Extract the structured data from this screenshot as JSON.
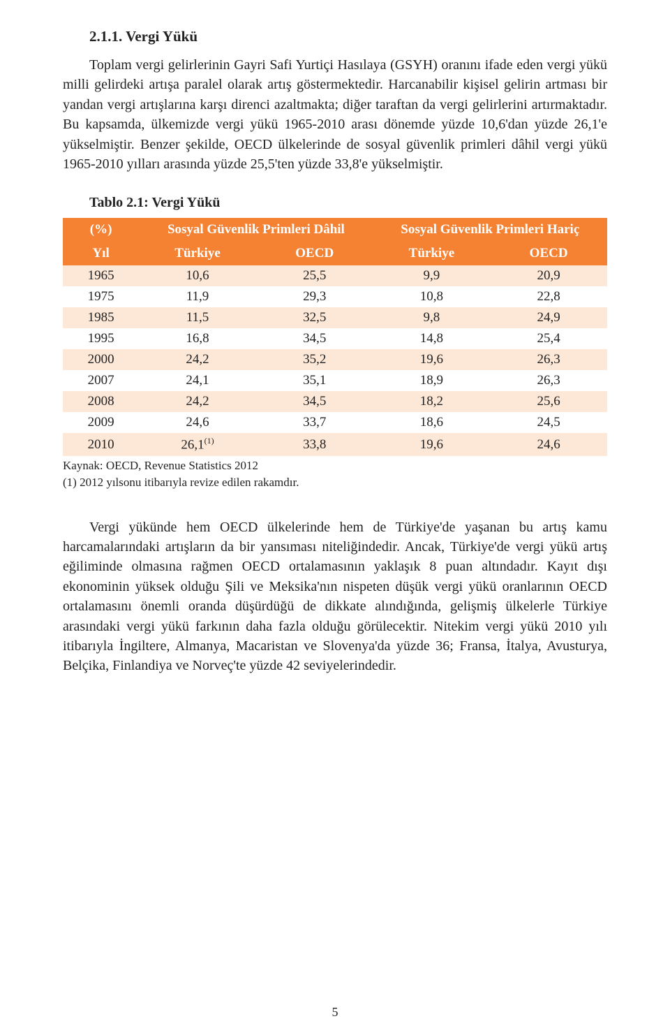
{
  "section_heading": "2.1.1. Vergi Yükü",
  "paragraph1": "Toplam vergi gelirlerinin Gayri Safi Yurtiçi Hasılaya (GSYH) oranını ifade eden vergi yükü milli gelirdeki artışa paralel olarak artış göstermektedir. Harcanabilir kişisel gelirin artması bir yandan vergi artışlarına karşı direnci azaltmakta; diğer taraftan da vergi gelirlerini artırmaktadır. Bu kapsamda, ülkemizde vergi yükü 1965-2010 arası dönemde yüzde 10,6'dan yüzde 26,1'e yükselmiştir. Benzer şekilde, OECD ülkelerinde de sosyal güvenlik primleri dâhil vergi yükü 1965-2010 yılları arasında yüzde 25,5'ten yüzde 33,8'e yükselmiştir.",
  "table_title": "Tablo 2.1: Vergi Yükü",
  "header": {
    "percent": "(%)",
    "group_dahil": "Sosyal Güvenlik Primleri Dâhil",
    "group_haric": "Sosyal Güvenlik Primleri Hariç",
    "yil": "Yıl",
    "turkiye": "Türkiye",
    "oecd": "OECD"
  },
  "rows": [
    {
      "yil": "1965",
      "d_tr": "10,6",
      "d_oecd": "25,5",
      "h_tr": "9,9",
      "h_oecd": "20,9"
    },
    {
      "yil": "1975",
      "d_tr": "11,9",
      "d_oecd": "29,3",
      "h_tr": "10,8",
      "h_oecd": "22,8"
    },
    {
      "yil": "1985",
      "d_tr": "11,5",
      "d_oecd": "32,5",
      "h_tr": "9,8",
      "h_oecd": "24,9"
    },
    {
      "yil": "1995",
      "d_tr": "16,8",
      "d_oecd": "34,5",
      "h_tr": "14,8",
      "h_oecd": "25,4"
    },
    {
      "yil": "2000",
      "d_tr": "24,2",
      "d_oecd": "35,2",
      "h_tr": "19,6",
      "h_oecd": "26,3"
    },
    {
      "yil": "2007",
      "d_tr": "24,1",
      "d_oecd": "35,1",
      "h_tr": "18,9",
      "h_oecd": "26,3"
    },
    {
      "yil": "2008",
      "d_tr": "24,2",
      "d_oecd": "34,5",
      "h_tr": "18,2",
      "h_oecd": "25,6"
    },
    {
      "yil": "2009",
      "d_tr": "24,6",
      "d_oecd": "33,7",
      "h_tr": "18,6",
      "h_oecd": "24,5"
    },
    {
      "yil": "2010",
      "d_tr": "26,1",
      "d_tr_sup": "(1)",
      "d_oecd": "33,8",
      "h_tr": "19,6",
      "h_oecd": "24,6"
    }
  ],
  "table_style": {
    "header_bg": "#f58233",
    "header_text": "#ffffff",
    "odd_bg": "#fde8d8",
    "even_bg": "#ffffff"
  },
  "footnote1": "Kaynak: OECD, Revenue Statistics 2012",
  "footnote2": "(1) 2012 yılsonu itibarıyla revize edilen rakamdır.",
  "paragraph2": "Vergi yükünde hem OECD ülkelerinde hem de Türkiye'de yaşanan bu artış kamu harcamalarındaki artışların da bir yansıması niteliğindedir. Ancak, Türkiye'de vergi yükü artış eğiliminde olmasına rağmen OECD ortalamasının yaklaşık 8 puan altındadır. Kayıt dışı ekonominin yüksek olduğu Şili ve Meksika'nın nispeten düşük vergi yükü oranlarının OECD ortalamasını önemli oranda düşürdüğü de dikkate alındığında, gelişmiş ülkelerle Türkiye arasındaki vergi yükü farkının daha fazla olduğu görülecektir. Nitekim vergi yükü 2010 yılı itibarıyla İngiltere, Almanya, Macaristan ve Slovenya'da yüzde 36; Fransa, İtalya, Avusturya, Belçika, Finlandiya ve Norveç'te yüzde 42 seviyelerindedir.",
  "page_number": "5"
}
